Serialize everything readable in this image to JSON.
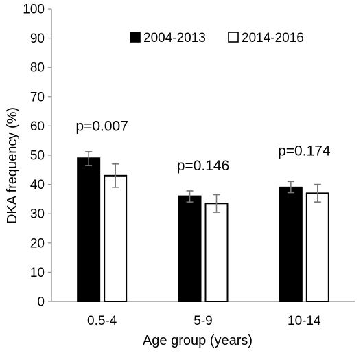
{
  "chart_data": {
    "type": "bar",
    "title": "",
    "xlabel": "Age group (years)",
    "ylabel": "DKA frequency (%)",
    "ylim": [
      0,
      100
    ],
    "yticks": [
      0,
      10,
      20,
      30,
      40,
      50,
      60,
      70,
      80,
      90,
      100
    ],
    "grid": false,
    "legend_position": "top-right",
    "categories": [
      "0.5-4",
      "5-9",
      "10-14"
    ],
    "series": [
      {
        "name": "2004-2013",
        "color": "#000000",
        "values": [
          49,
          36,
          39
        ],
        "error_low": [
          46.5,
          34,
          37.2
        ],
        "error_high": [
          51.2,
          37.8,
          41
        ]
      },
      {
        "name": "2014-2016",
        "color": "#ffffff",
        "values": [
          43,
          33.5,
          37
        ],
        "error_low": [
          39,
          30.5,
          34
        ],
        "error_high": [
          47,
          36.5,
          40
        ]
      }
    ],
    "annotations": [
      {
        "category": "0.5-4",
        "text": "p=0.007",
        "y": 60
      },
      {
        "category": "5-9",
        "text": "p=0.146",
        "y": 46.5
      },
      {
        "category": "10-14",
        "text": "p=0.174",
        "y": 51.5
      }
    ]
  }
}
